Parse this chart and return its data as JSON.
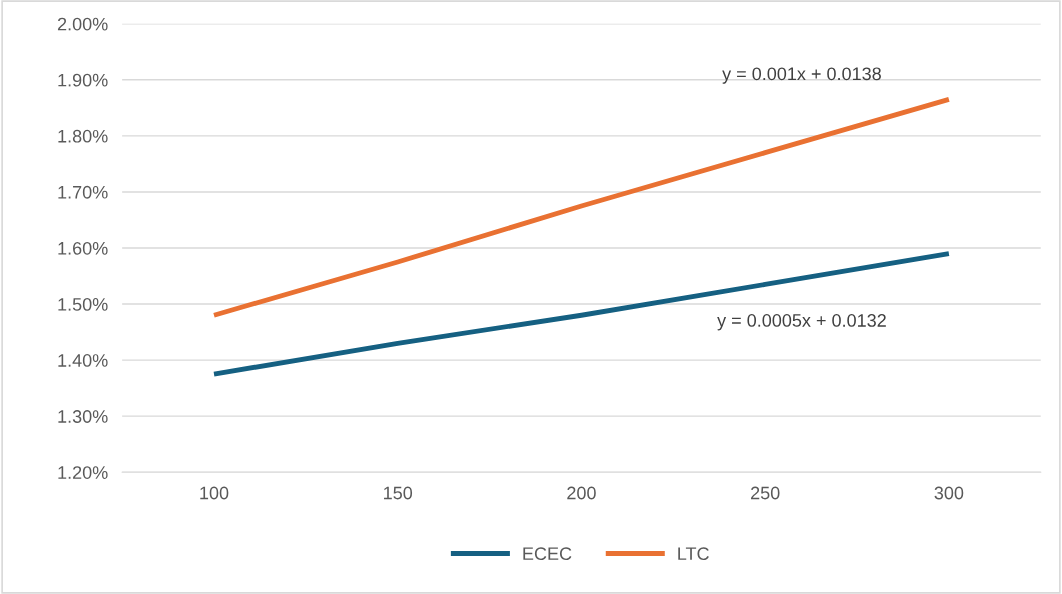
{
  "chart_data": {
    "type": "line",
    "categories": [
      "100",
      "150",
      "200",
      "250",
      "300"
    ],
    "series": [
      {
        "name": "ECEC",
        "color": "#156082",
        "values": [
          1.375,
          1.43,
          1.48,
          1.535,
          1.59
        ]
      },
      {
        "name": "LTC",
        "color": "#e97132",
        "values": [
          1.48,
          1.575,
          1.675,
          1.77,
          1.865
        ]
      }
    ],
    "ylim": [
      1.2,
      2.0
    ],
    "yticks": [
      {
        "value": 1.2,
        "label": "1.20%"
      },
      {
        "value": 1.3,
        "label": "1.30%"
      },
      {
        "value": 1.4,
        "label": "1.40%"
      },
      {
        "value": 1.5,
        "label": "1.50%"
      },
      {
        "value": 1.6,
        "label": "1.60%"
      },
      {
        "value": 1.7,
        "label": "1.70%"
      },
      {
        "value": 1.8,
        "label": "1.80%"
      },
      {
        "value": 1.9,
        "label": "1.90%"
      },
      {
        "value": 2.0,
        "label": "2.00%"
      }
    ],
    "annotations": [
      "y = 0.001x + 0.0138",
      "y = 0.0005x + 0.0132"
    ],
    "grid": "y",
    "legend": "bottom",
    "marker": "none",
    "line_style": "solid"
  }
}
